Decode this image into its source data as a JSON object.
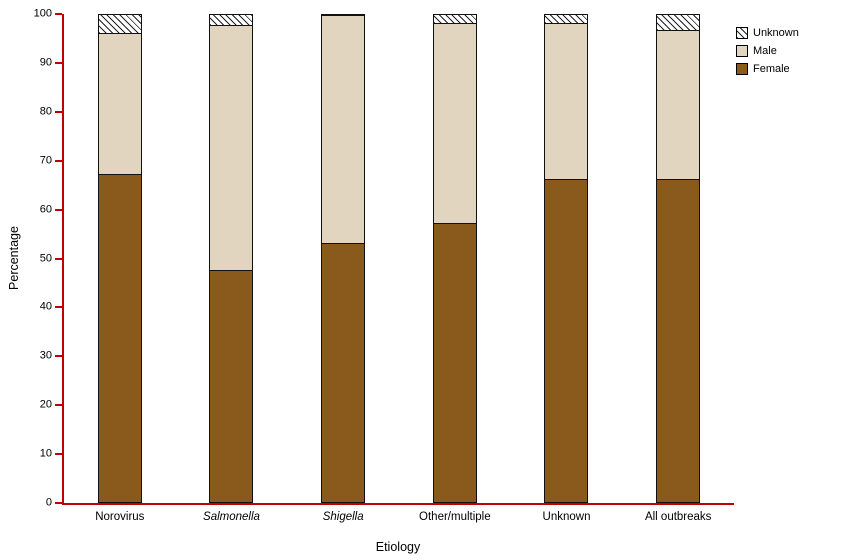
{
  "chart_data": {
    "type": "bar",
    "stacked": true,
    "title": "",
    "xlabel": "Etiology",
    "ylabel": "Percentage",
    "ylim": [
      0,
      100
    ],
    "yticks": [
      0,
      10,
      20,
      30,
      40,
      50,
      60,
      70,
      80,
      90,
      100
    ],
    "grid": false,
    "axis_color": "#c00000",
    "categories": [
      "Norovirus",
      "Salmonella",
      "Shigella",
      "Other/multiple",
      "Unknown",
      "All outbreaks"
    ],
    "italic_categories": [
      "Salmonella",
      "Shigella"
    ],
    "series": [
      {
        "name": "Female",
        "color": "#8a591c",
        "values": [
          67,
          47.5,
          53,
          57,
          66,
          66
        ]
      },
      {
        "name": "Male",
        "color": "#e1d5bf",
        "values": [
          29,
          50,
          46.5,
          41,
          32,
          30.5
        ]
      },
      {
        "name": "Unknown",
        "color": "#ffffff",
        "pattern": "diagonal-hatch",
        "values": [
          4,
          2.5,
          0.5,
          2,
          2,
          3.5
        ]
      }
    ],
    "legend": {
      "position": "top-right",
      "entries": [
        "Unknown",
        "Male",
        "Female"
      ]
    }
  }
}
